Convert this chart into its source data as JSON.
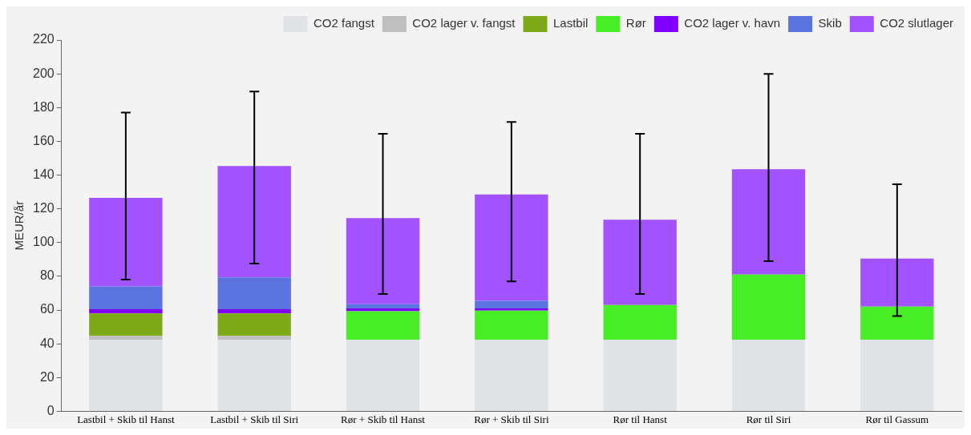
{
  "chart_data": {
    "type": "bar",
    "stacked": true,
    "ylabel": "MEUR/år",
    "categories": [
      "Lastbil + Skib til Hanst",
      "Lastbil + Skib til Siri",
      "Rør + Skib til Hanst",
      "Rør + Skib til Siri",
      "Rør til Hanst",
      "Rør til Siri",
      "Rør til Gassum"
    ],
    "series": [
      {
        "name": "CO2 fangst",
        "color": "#dfe3e6",
        "values": [
          42.5,
          42.5,
          42.5,
          42.5,
          42.5,
          42.5,
          42.5
        ]
      },
      {
        "name": "CO2 lager v. fangst",
        "color": "#bfbfbf",
        "values": [
          2.2,
          2.2,
          null,
          null,
          null,
          null,
          null
        ]
      },
      {
        "name": "Lastbil",
        "color": "#7ea919",
        "values": [
          13.3,
          13.3,
          null,
          null,
          null,
          null,
          null
        ]
      },
      {
        "name": "Rør",
        "color": "#47ed25",
        "values": [
          null,
          null,
          16.8,
          17.2,
          20.5,
          38.5,
          19.5
        ]
      },
      {
        "name": "CO2 lager v. havn",
        "color": "#7f00ff",
        "values": [
          2.5,
          2.5,
          1.7,
          1.3,
          null,
          null,
          null
        ]
      },
      {
        "name": "Skib",
        "color": "#5a73df",
        "values": [
          13.5,
          18.8,
          2.5,
          4.5,
          null,
          null,
          null
        ]
      },
      {
        "name": "CO2 slutlager",
        "color": "#a352ff",
        "values": [
          52.5,
          66,
          51,
          63,
          50.5,
          62.5,
          28.5
        ],
        "errors": [
          [
            78,
            177
          ],
          [
            87.5,
            189.5
          ],
          [
            69.5,
            164.5
          ],
          [
            77,
            171.5
          ],
          [
            69.5,
            164.5
          ],
          [
            89,
            200
          ],
          [
            56.5,
            134.5
          ]
        ]
      }
    ],
    "ylim": [
      0,
      220
    ],
    "yticks": [
      0,
      20,
      40,
      60,
      80,
      100,
      120,
      140,
      160,
      180,
      200,
      220
    ],
    "grid": false,
    "legend": "top"
  }
}
